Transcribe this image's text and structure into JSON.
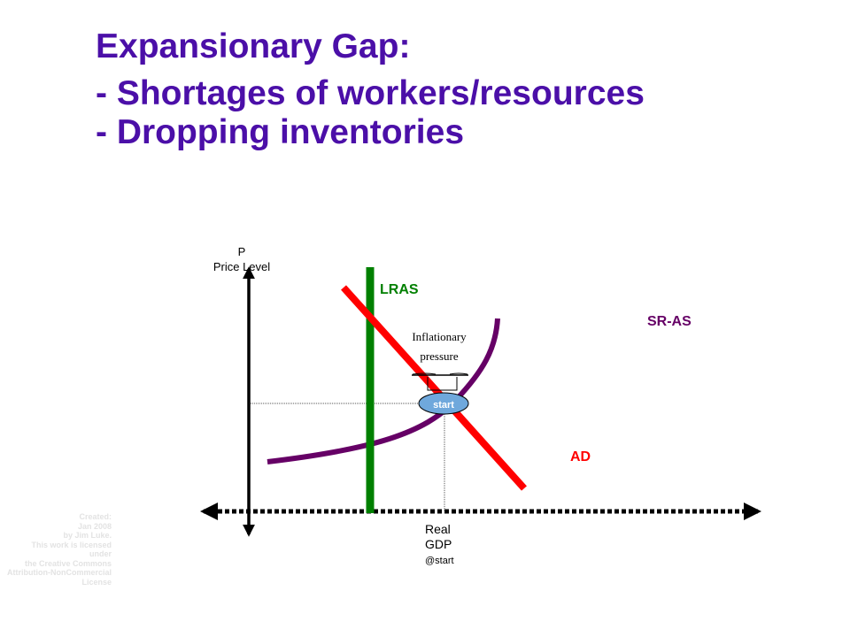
{
  "slide": {
    "title_lines": [
      "Expansionary Gap:",
      "- Shortages of workers/resources",
      "- Dropping inventories"
    ]
  },
  "diagram": {
    "y_axis_label": [
      "P",
      "Price Level"
    ],
    "x_axis_label": [
      "Real",
      "GDP",
      "@start"
    ],
    "curves": {
      "lras": {
        "label": "LRAS",
        "color": "#008000"
      },
      "sras": {
        "label": "SR-AS",
        "color": "#660066"
      },
      "ad": {
        "label": "AD",
        "color": "#ff0000"
      }
    },
    "annotation": [
      "Inflationary",
      "pressure"
    ],
    "start_label": "start",
    "start_color": "#6fa8dc"
  },
  "credit": [
    "Created:",
    "Jan 2008",
    "by Jim Luke.",
    "This work is licensed under",
    "the Creative Commons",
    "Attribution-NonCommercial",
    "License"
  ]
}
